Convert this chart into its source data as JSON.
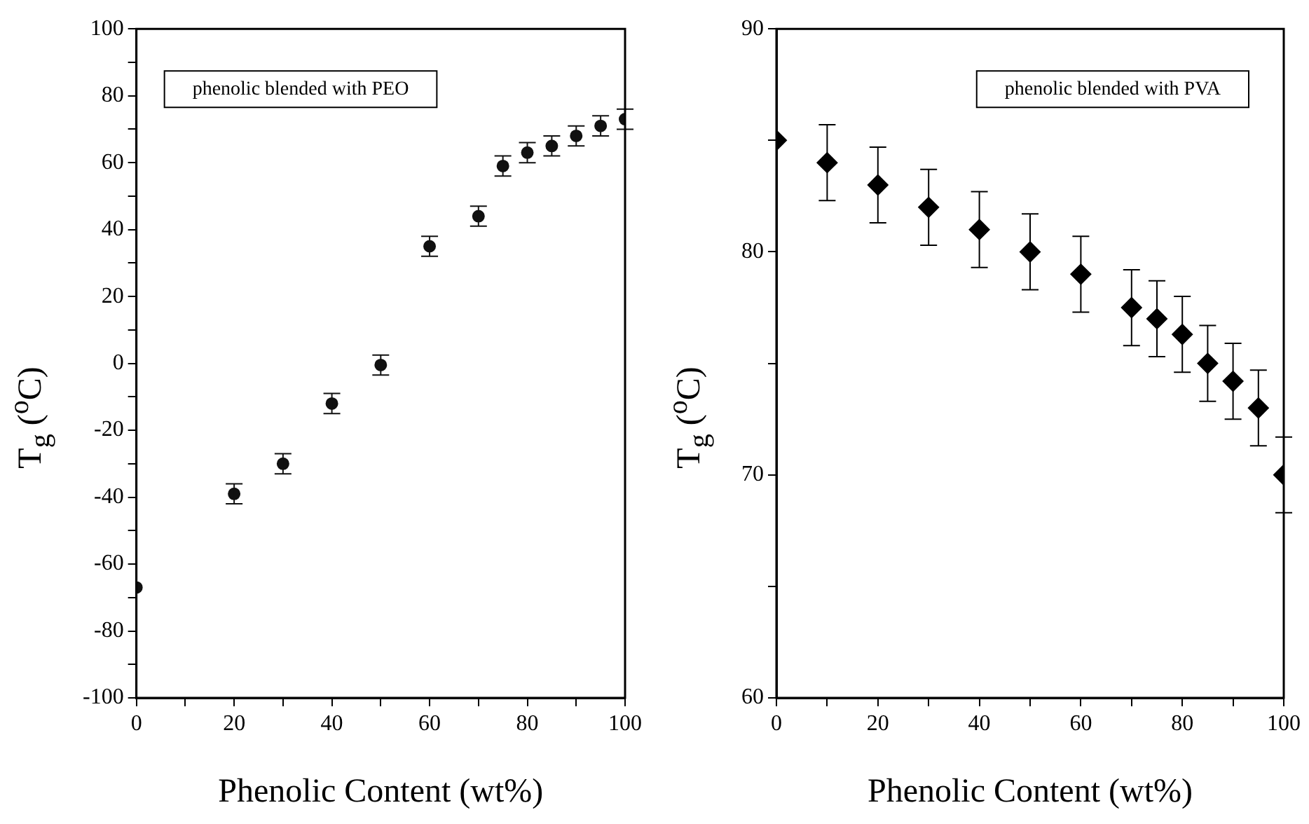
{
  "chart_data": [
    {
      "type": "scatter",
      "xlabel": "Phenolic Content (wt%)",
      "ylabel": "T$_{g}$ ($^{o}$C)",
      "annotations": [
        "phenolic blended with PEO"
      ],
      "marker": "circle",
      "xlim": [
        0,
        100
      ],
      "ylim": [
        -100,
        100
      ],
      "xticks": [
        0,
        {
          "value": 10,
          "label": null
        },
        20,
        {
          "value": 30,
          "label": null
        },
        40,
        {
          "value": 50,
          "label": null
        },
        60,
        {
          "value": 70,
          "label": null
        },
        80,
        {
          "value": 90,
          "label": null
        },
        100
      ],
      "yticks": [
        -100,
        {
          "value": -90,
          "label": null
        },
        -80,
        {
          "value": -70,
          "label": null
        },
        -60,
        {
          "value": -50,
          "label": null
        },
        -40,
        {
          "value": -30,
          "label": null
        },
        -20,
        {
          "value": -10,
          "label": null
        },
        0,
        {
          "value": 10,
          "label": null
        },
        20,
        {
          "value": 30,
          "label": null
        },
        40,
        {
          "value": 50,
          "label": null
        },
        60,
        {
          "value": 70,
          "label": null
        },
        80,
        {
          "value": 90,
          "label": null
        },
        100
      ],
      "series": [
        {
          "color": "#111111",
          "x": [
            0,
            20,
            30,
            40,
            50,
            60,
            70,
            75,
            80,
            85,
            90,
            95,
            100
          ],
          "values": [
            -67,
            -39,
            -30,
            -12,
            -0.5,
            35,
            44,
            59,
            63,
            65,
            68,
            71,
            73
          ],
          "errors": [
            null,
            3,
            3,
            3,
            3,
            3,
            3,
            3,
            3,
            3,
            3,
            3,
            3
          ]
        }
      ]
    },
    {
      "type": "scatter",
      "xlabel": "Phenolic Content (wt%)",
      "ylabel": "T$_{g}$ ($^{o}$C)",
      "annotations": [
        "phenolic blended with PVA"
      ],
      "marker": "diamond",
      "xlim": [
        0,
        100
      ],
      "ylim": [
        60,
        90
      ],
      "xticks": [
        0,
        {
          "value": 10,
          "label": null
        },
        20,
        {
          "value": 30,
          "label": null
        },
        40,
        {
          "value": 50,
          "label": null
        },
        60,
        {
          "value": 70,
          "label": null
        },
        80,
        {
          "value": 90,
          "label": null
        },
        100
      ],
      "yticks": [
        60,
        {
          "value": 65,
          "label": null
        },
        70,
        {
          "value": 75,
          "label": null
        },
        80,
        {
          "value": 85,
          "label": null
        },
        90
      ],
      "series": [
        {
          "color": "#000000",
          "x": [
            0,
            10,
            20,
            30,
            40,
            50,
            60,
            70,
            75,
            80,
            85,
            90,
            95,
            100
          ],
          "values": [
            85,
            84,
            83,
            82,
            81,
            80,
            79,
            77.5,
            77,
            76.3,
            75,
            74.2,
            73,
            70
          ],
          "errors": [
            null,
            1.7,
            1.7,
            1.7,
            1.7,
            1.7,
            1.7,
            1.7,
            1.7,
            1.7,
            1.7,
            1.7,
            1.7,
            1.7
          ]
        }
      ]
    }
  ]
}
